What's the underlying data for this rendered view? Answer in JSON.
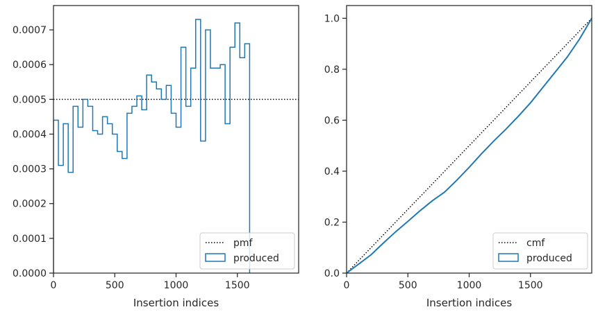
{
  "chart_data": [
    {
      "type": "line",
      "subtype": "step-histogram",
      "xlabel": "Insertion indices",
      "ylabel": "",
      "xlim": [
        0,
        2000
      ],
      "ylim": [
        0,
        0.00077
      ],
      "xticks": [
        0,
        500,
        1000,
        1500
      ],
      "yticks": [
        0,
        0.0001,
        0.0002,
        0.0003,
        0.0004,
        0.0005,
        0.0006,
        0.0007
      ],
      "ytick_labels": [
        "0.0000",
        "0.0001",
        "0.0002",
        "0.0003",
        "0.0004",
        "0.0005",
        "0.0006",
        "0.0007"
      ],
      "grid": false,
      "legend_position": "bottom-right",
      "bin_width": 40,
      "series": [
        {
          "name": "pmf",
          "style": "dotted",
          "color": "#000000",
          "y": 0.0005
        },
        {
          "name": "produced",
          "style": "step",
          "color": "#1f77b4",
          "bin_edges_start": 0,
          "values": [
            0.00044,
            0.00031,
            0.00043,
            0.00029,
            0.00048,
            0.00042,
            0.0005,
            0.00048,
            0.00041,
            0.0004,
            0.00045,
            0.00043,
            0.0004,
            0.00035,
            0.00033,
            0.00046,
            0.00048,
            0.00051,
            0.00047,
            0.00057,
            0.00055,
            0.00053,
            0.0005,
            0.00054,
            0.00046,
            0.00042,
            0.00065,
            0.00048,
            0.00059,
            0.00073,
            0.00038,
            0.0007,
            0.00059,
            0.00059,
            0.0006,
            0.00043,
            0.00065,
            0.00072,
            0.00062,
            0.00066
          ]
        }
      ]
    },
    {
      "type": "line",
      "xlabel": "Insertion indices",
      "ylabel": "",
      "xlim": [
        0,
        2000
      ],
      "ylim": [
        0,
        1.05
      ],
      "xticks": [
        0,
        500,
        1000,
        1500
      ],
      "yticks": [
        0,
        0.2,
        0.4,
        0.6,
        0.8,
        1.0
      ],
      "ytick_labels": [
        "0.0",
        "0.2",
        "0.4",
        "0.6",
        "0.8",
        "1.0"
      ],
      "grid": false,
      "legend_position": "bottom-right",
      "series": [
        {
          "name": "cmf",
          "style": "dotted",
          "color": "#000000",
          "x": [
            0,
            2000
          ],
          "y": [
            0,
            1.0
          ]
        },
        {
          "name": "produced",
          "style": "line",
          "color": "#1f77b4",
          "x": [
            0,
            100,
            200,
            300,
            400,
            500,
            600,
            700,
            800,
            900,
            1000,
            1100,
            1200,
            1300,
            1400,
            1500,
            1600,
            1700,
            1800,
            1900,
            2000
          ],
          "y": [
            0,
            0.036,
            0.072,
            0.118,
            0.162,
            0.203,
            0.245,
            0.284,
            0.318,
            0.365,
            0.415,
            0.468,
            0.518,
            0.565,
            0.615,
            0.668,
            0.728,
            0.788,
            0.848,
            0.918,
            1.0
          ]
        }
      ]
    }
  ]
}
